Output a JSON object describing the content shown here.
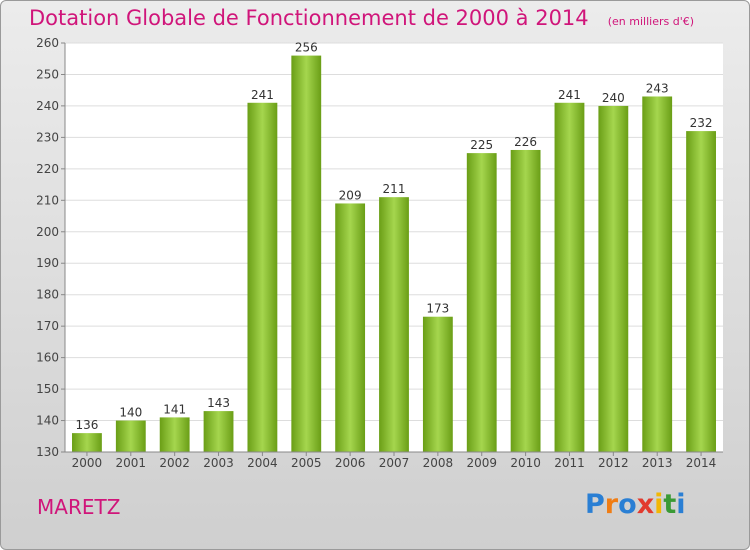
{
  "header": {
    "title": "Dotation Globale de Fonctionnement de 2000 à 2014",
    "unit": "(en milliers d'€)"
  },
  "footer": {
    "commune": "MARETZ",
    "logo_text": "Proxiti",
    "logo_letters": [
      {
        "ch": "P",
        "color": "#2a7fd4"
      },
      {
        "ch": "r",
        "color": "#f07d14"
      },
      {
        "ch": "o",
        "color": "#2a7fd4"
      },
      {
        "ch": "x",
        "color": "#e23a2e"
      },
      {
        "ch": "i",
        "color": "#f2b705"
      },
      {
        "ch": "t",
        "color": "#3a9a35"
      },
      {
        "ch": "i",
        "color": "#2a7fd4"
      }
    ]
  },
  "colors": {
    "accent": "#d0157a",
    "bar_light": "#a5d64e",
    "bar_dark": "#6a9e16",
    "plot_bg": "#ffffff",
    "grid": "#dddddd"
  },
  "chart_data": {
    "type": "bar",
    "title": "Dotation Globale de Fonctionnement de 2000 à 2014",
    "subtitle": "(en milliers d'€)",
    "xlabel": "",
    "ylabel": "",
    "categories": [
      "2000",
      "2001",
      "2002",
      "2003",
      "2004",
      "2005",
      "2006",
      "2007",
      "2008",
      "2009",
      "2010",
      "2011",
      "2012",
      "2013",
      "2014"
    ],
    "values": [
      136,
      140,
      141,
      143,
      241,
      256,
      209,
      211,
      173,
      225,
      226,
      241,
      240,
      243,
      232
    ],
    "ylim": [
      130,
      260
    ],
    "yticks": [
      130,
      140,
      150,
      160,
      170,
      180,
      190,
      200,
      210,
      220,
      230,
      240,
      250,
      260
    ],
    "grid": true,
    "data_labels": true
  }
}
